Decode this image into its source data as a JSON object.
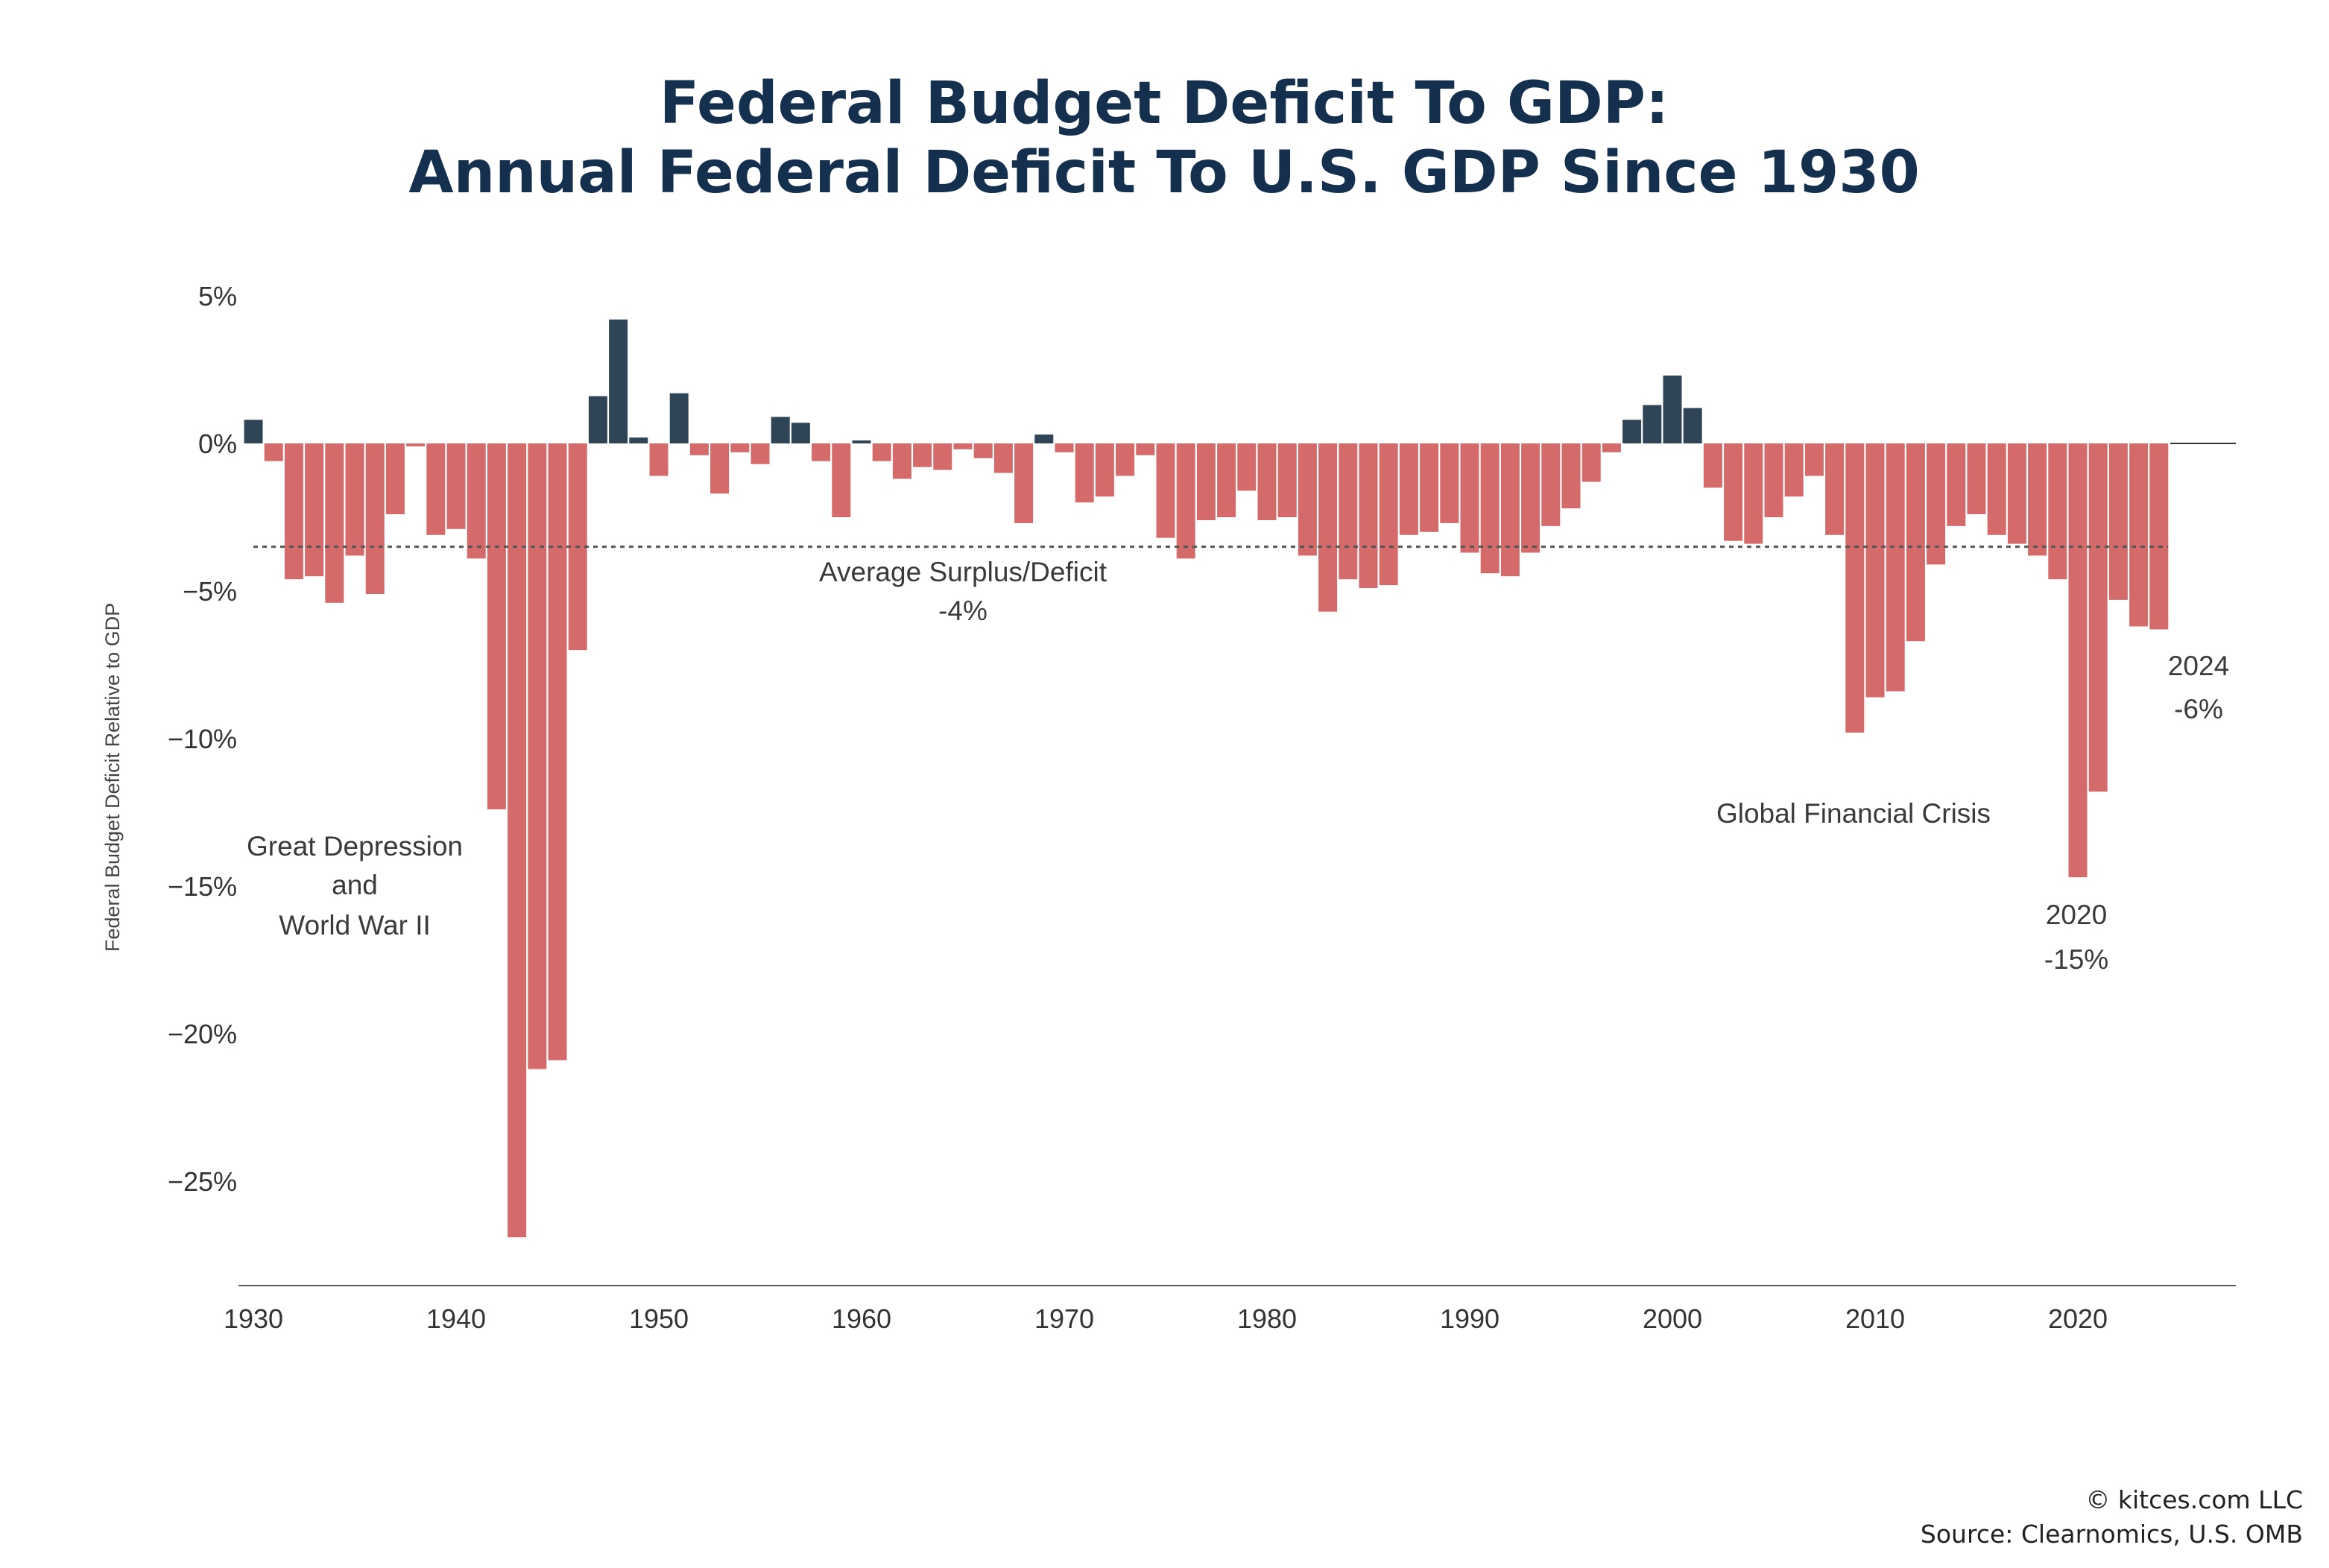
{
  "title": {
    "line1": "Federal Budget Deficit To GDP:",
    "line2": "Annual Federal Deficit To U.S. GDP Since 1930"
  },
  "footer": {
    "copyright": "© kitces.com LLC",
    "source": "Source: Clearnomics, U.S. OMB"
  },
  "colors": {
    "deficit": "#d46a6a",
    "surplus": "#2f4456",
    "title": "#15304f",
    "average_line": "#555555"
  },
  "chart_data": {
    "type": "bar",
    "ylabel": "Federal Budget Deficit Relative to GDP",
    "xlabel": "",
    "ylim": [
      -28,
      5
    ],
    "y_ticks": [
      5,
      0,
      -5,
      -10,
      -15,
      -20,
      -25
    ],
    "y_tick_labels": [
      "5%",
      "0%",
      "−5%",
      "−10%",
      "−15%",
      "−20%",
      "−25%"
    ],
    "x_ticks": [
      1930,
      1940,
      1950,
      1960,
      1970,
      1980,
      1990,
      2000,
      2010,
      2020
    ],
    "x_tick_labels": [
      "1930",
      "1940",
      "1950",
      "1960",
      "1970",
      "1980",
      "1990",
      "2000",
      "2010",
      "2020"
    ],
    "grid": false,
    "legend": "none",
    "years": [
      1930,
      1931,
      1932,
      1933,
      1934,
      1935,
      1936,
      1937,
      1938,
      1939,
      1940,
      1941,
      1942,
      1943,
      1944,
      1945,
      1946,
      1947,
      1948,
      1949,
      1950,
      1951,
      1952,
      1953,
      1954,
      1955,
      1956,
      1957,
      1958,
      1959,
      1960,
      1961,
      1962,
      1963,
      1964,
      1965,
      1966,
      1967,
      1968,
      1969,
      1970,
      1971,
      1972,
      1973,
      1974,
      1975,
      1976,
      1977,
      1978,
      1979,
      1980,
      1981,
      1982,
      1983,
      1984,
      1985,
      1986,
      1987,
      1988,
      1989,
      1990,
      1991,
      1992,
      1993,
      1994,
      1995,
      1996,
      1997,
      1998,
      1999,
      2000,
      2001,
      2002,
      2003,
      2004,
      2005,
      2006,
      2007,
      2008,
      2009,
      2010,
      2011,
      2012,
      2013,
      2014,
      2015,
      2016,
      2017,
      2018,
      2019,
      2020,
      2021,
      2022,
      2023,
      2024
    ],
    "values": [
      0.8,
      -0.6,
      -4.6,
      -4.5,
      -5.4,
      -3.8,
      -5.1,
      -2.4,
      -0.1,
      -3.1,
      -2.9,
      -3.9,
      -12.4,
      -26.9,
      -21.2,
      -20.9,
      -7.0,
      1.6,
      4.2,
      0.2,
      -1.1,
      1.7,
      -0.4,
      -1.7,
      -0.3,
      -0.7,
      0.9,
      0.7,
      -0.6,
      -2.5,
      0.1,
      -0.6,
      -1.2,
      -0.8,
      -0.9,
      -0.2,
      -0.5,
      -1.0,
      -2.7,
      0.3,
      -0.3,
      -2.0,
      -1.8,
      -1.1,
      -0.4,
      -3.2,
      -3.9,
      -2.6,
      -2.5,
      -1.6,
      -2.6,
      -2.5,
      -3.8,
      -5.7,
      -4.6,
      -4.9,
      -4.8,
      -3.1,
      -3.0,
      -2.7,
      -3.7,
      -4.4,
      -4.5,
      -3.7,
      -2.8,
      -2.2,
      -1.3,
      -0.3,
      0.8,
      1.3,
      2.3,
      1.2,
      -1.5,
      -3.3,
      -3.4,
      -2.5,
      -1.8,
      -1.1,
      -3.1,
      -9.8,
      -8.6,
      -8.4,
      -6.7,
      -4.1,
      -2.8,
      -2.4,
      -3.1,
      -3.4,
      -3.8,
      -4.6,
      -14.7,
      -11.8,
      -5.3,
      -6.2,
      -6.3
    ],
    "average": -3.5,
    "annotations": {
      "average_line1": "Average Surplus/Deficit",
      "average_line2": "-4%",
      "depression_line1": "Great Depression",
      "depression_line2": "and",
      "depression_line3": "World War II",
      "gfc": "Global Financial Crisis",
      "y2020_line1": "2020",
      "y2020_line2": "-15%",
      "y2024_line1": "2024",
      "y2024_line2": "-6%"
    }
  }
}
